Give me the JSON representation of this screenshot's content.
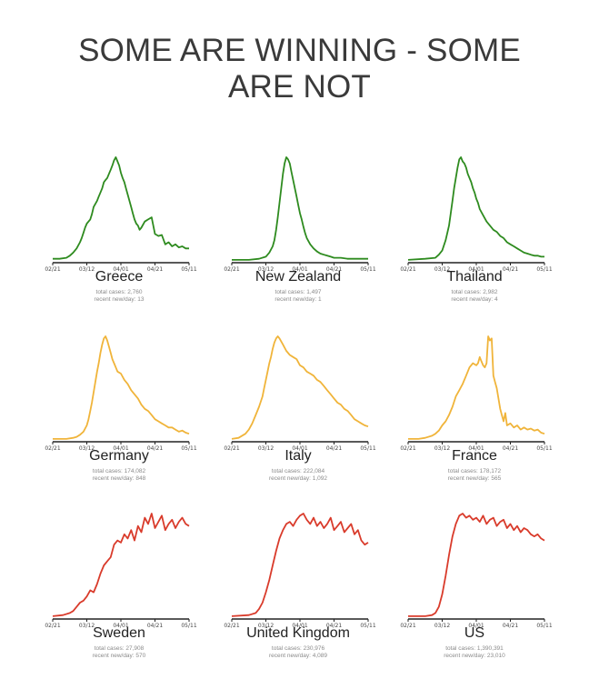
{
  "title": {
    "line1": "SOME ARE WINNING - SOME",
    "line2": "ARE NOT"
  },
  "colors": {
    "winning": "#2e8b1f",
    "mid": "#f0b43a",
    "losing": "#d93b2b",
    "axis": "#222222"
  },
  "chart_data": [
    {
      "type": "line",
      "title": "Greece",
      "total_cases": "total cases: 2,760",
      "recent": "recent new/day: 13",
      "color": "#2e8b1f",
      "x_ticks": [
        "02/21",
        "03/12",
        "04/01",
        "04/21",
        "05/11"
      ],
      "x": [
        0,
        4,
        8,
        10,
        12,
        14,
        16,
        17,
        18,
        19,
        20,
        21,
        22,
        23,
        24,
        25,
        26,
        27,
        28,
        29,
        30,
        31,
        32,
        33,
        34,
        35,
        36,
        37,
        38,
        39,
        40,
        41,
        42,
        43,
        44,
        45,
        46,
        47,
        48,
        49,
        50,
        51,
        52,
        54,
        56,
        58,
        60,
        62,
        64,
        66,
        68,
        70,
        72,
        74,
        76,
        78,
        80
      ],
      "y": [
        0.02,
        0.02,
        0.03,
        0.05,
        0.08,
        0.12,
        0.18,
        0.22,
        0.27,
        0.32,
        0.36,
        0.38,
        0.4,
        0.45,
        0.52,
        0.55,
        0.58,
        0.62,
        0.66,
        0.7,
        0.76,
        0.78,
        0.8,
        0.84,
        0.88,
        0.92,
        0.97,
        1.0,
        0.96,
        0.92,
        0.85,
        0.8,
        0.76,
        0.7,
        0.64,
        0.58,
        0.52,
        0.46,
        0.4,
        0.36,
        0.34,
        0.3,
        0.32,
        0.38,
        0.4,
        0.42,
        0.26,
        0.24,
        0.25,
        0.16,
        0.18,
        0.14,
        0.16,
        0.13,
        0.14,
        0.12,
        0.12
      ]
    },
    {
      "type": "line",
      "title": "New Zealand",
      "total_cases": "total cases: 1,497",
      "recent": "recent new/day: 1",
      "color": "#2e8b1f",
      "x_ticks": [
        "02/21",
        "03/12",
        "04/01",
        "04/21",
        "05/11"
      ],
      "x": [
        0,
        10,
        16,
        20,
        22,
        24,
        25,
        26,
        27,
        28,
        29,
        30,
        31,
        32,
        33,
        34,
        35,
        36,
        37,
        38,
        39,
        40,
        41,
        42,
        43,
        44,
        46,
        48,
        50,
        52,
        54,
        56,
        58,
        60,
        64,
        68,
        72,
        76,
        80
      ],
      "y": [
        0.01,
        0.01,
        0.02,
        0.04,
        0.08,
        0.14,
        0.2,
        0.3,
        0.42,
        0.56,
        0.7,
        0.84,
        0.94,
        1.0,
        0.98,
        0.94,
        0.86,
        0.78,
        0.7,
        0.62,
        0.54,
        0.46,
        0.4,
        0.33,
        0.27,
        0.22,
        0.16,
        0.12,
        0.09,
        0.07,
        0.06,
        0.05,
        0.04,
        0.03,
        0.03,
        0.02,
        0.02,
        0.02,
        0.02
      ]
    },
    {
      "type": "line",
      "title": "Thailand",
      "total_cases": "total cases: 2,982",
      "recent": "recent new/day: 4",
      "color": "#2e8b1f",
      "x_ticks": [
        "02/21",
        "03/12",
        "04/01",
        "04/21",
        "05/11"
      ],
      "x": [
        0,
        10,
        16,
        18,
        20,
        22,
        24,
        25,
        26,
        27,
        28,
        29,
        30,
        31,
        32,
        33,
        34,
        35,
        36,
        37,
        38,
        39,
        40,
        41,
        42,
        44,
        46,
        48,
        50,
        52,
        54,
        56,
        58,
        60,
        62,
        64,
        66,
        68,
        70,
        72,
        74,
        76,
        78,
        80
      ],
      "y": [
        0.01,
        0.02,
        0.03,
        0.06,
        0.1,
        0.2,
        0.34,
        0.46,
        0.58,
        0.7,
        0.8,
        0.9,
        0.98,
        1.0,
        0.96,
        0.94,
        0.9,
        0.84,
        0.8,
        0.76,
        0.7,
        0.66,
        0.6,
        0.56,
        0.5,
        0.44,
        0.38,
        0.34,
        0.3,
        0.28,
        0.24,
        0.22,
        0.18,
        0.16,
        0.14,
        0.12,
        0.1,
        0.08,
        0.07,
        0.06,
        0.05,
        0.05,
        0.04,
        0.04
      ]
    },
    {
      "type": "line",
      "title": "Germany",
      "total_cases": "total cases: 174,082",
      "recent": "recent new/day: 848",
      "color": "#f0b43a",
      "x_ticks": [
        "02/21",
        "03/12",
        "04/01",
        "04/21",
        "05/11"
      ],
      "x": [
        0,
        8,
        12,
        14,
        16,
        18,
        20,
        21,
        22,
        23,
        24,
        25,
        26,
        27,
        28,
        29,
        30,
        31,
        32,
        33,
        34,
        35,
        36,
        37,
        38,
        40,
        42,
        44,
        46,
        48,
        50,
        52,
        54,
        56,
        58,
        60,
        62,
        64,
        66,
        68,
        70,
        72,
        74,
        76,
        78,
        80
      ],
      "y": [
        0.01,
        0.01,
        0.02,
        0.03,
        0.05,
        0.08,
        0.14,
        0.2,
        0.28,
        0.36,
        0.46,
        0.56,
        0.66,
        0.74,
        0.84,
        0.92,
        0.98,
        1.0,
        0.96,
        0.9,
        0.84,
        0.78,
        0.74,
        0.7,
        0.66,
        0.64,
        0.58,
        0.54,
        0.48,
        0.44,
        0.4,
        0.34,
        0.3,
        0.28,
        0.24,
        0.2,
        0.18,
        0.16,
        0.14,
        0.12,
        0.12,
        0.1,
        0.08,
        0.09,
        0.07,
        0.06
      ]
    },
    {
      "type": "line",
      "title": "Italy",
      "total_cases": "total cases: 222,084",
      "recent": "recent new/day: 1,092",
      "color": "#f0b43a",
      "x_ticks": [
        "02/21",
        "03/12",
        "04/01",
        "04/21",
        "05/11"
      ],
      "x": [
        0,
        4,
        8,
        10,
        12,
        14,
        16,
        18,
        19,
        20,
        21,
        22,
        23,
        24,
        25,
        26,
        27,
        28,
        30,
        32,
        34,
        36,
        38,
        40,
        42,
        44,
        46,
        48,
        50,
        52,
        54,
        56,
        58,
        60,
        62,
        64,
        66,
        68,
        70,
        72,
        74,
        76,
        78,
        80
      ],
      "y": [
        0.01,
        0.02,
        0.06,
        0.1,
        0.16,
        0.24,
        0.32,
        0.42,
        0.5,
        0.58,
        0.66,
        0.74,
        0.8,
        0.88,
        0.94,
        0.98,
        1.0,
        0.98,
        0.92,
        0.86,
        0.82,
        0.8,
        0.78,
        0.72,
        0.7,
        0.66,
        0.64,
        0.62,
        0.58,
        0.56,
        0.52,
        0.48,
        0.44,
        0.4,
        0.36,
        0.34,
        0.3,
        0.28,
        0.24,
        0.2,
        0.18,
        0.16,
        0.14,
        0.13
      ]
    },
    {
      "type": "line",
      "title": "France",
      "total_cases": "total cases: 178,172",
      "recent": "recent new/day: 565",
      "color": "#f0b43a",
      "x_ticks": [
        "02/21",
        "03/12",
        "04/01",
        "04/21",
        "05/11"
      ],
      "x": [
        0,
        6,
        10,
        14,
        16,
        18,
        20,
        22,
        24,
        26,
        28,
        30,
        32,
        34,
        36,
        38,
        40,
        41,
        42,
        43,
        44,
        45,
        46,
        47,
        48,
        49,
        50,
        51,
        52,
        53,
        54,
        55,
        56,
        57,
        58,
        60,
        62,
        64,
        66,
        68,
        70,
        72,
        74,
        76,
        78,
        80
      ],
      "y": [
        0.01,
        0.01,
        0.02,
        0.04,
        0.06,
        0.09,
        0.14,
        0.18,
        0.24,
        0.32,
        0.42,
        0.48,
        0.54,
        0.62,
        0.7,
        0.74,
        0.72,
        0.74,
        0.8,
        0.76,
        0.72,
        0.7,
        0.74,
        1.0,
        0.96,
        0.98,
        0.62,
        0.56,
        0.5,
        0.4,
        0.3,
        0.24,
        0.18,
        0.26,
        0.14,
        0.16,
        0.12,
        0.14,
        0.1,
        0.12,
        0.1,
        0.11,
        0.09,
        0.1,
        0.07,
        0.06
      ]
    },
    {
      "type": "line",
      "title": "Sweden",
      "total_cases": "total cases: 27,908",
      "recent": "recent new/day: 570",
      "color": "#d93b2b",
      "x_ticks": [
        "02/21",
        "03/12",
        "04/01",
        "04/21",
        "05/11"
      ],
      "x": [
        0,
        6,
        10,
        12,
        14,
        16,
        18,
        20,
        22,
        24,
        26,
        28,
        30,
        32,
        34,
        36,
        38,
        40,
        42,
        44,
        46,
        48,
        50,
        52,
        54,
        56,
        58,
        60,
        62,
        64,
        66,
        68,
        70,
        72,
        74,
        76,
        78,
        80
      ],
      "y": [
        0.01,
        0.02,
        0.04,
        0.06,
        0.1,
        0.14,
        0.16,
        0.2,
        0.26,
        0.24,
        0.32,
        0.42,
        0.5,
        0.54,
        0.58,
        0.7,
        0.74,
        0.72,
        0.8,
        0.76,
        0.84,
        0.74,
        0.88,
        0.82,
        0.96,
        0.9,
        1.0,
        0.86,
        0.92,
        0.98,
        0.84,
        0.9,
        0.94,
        0.86,
        0.92,
        0.96,
        0.9,
        0.88
      ]
    },
    {
      "type": "line",
      "title": "United Kingdom",
      "total_cases": "total cases: 230,976",
      "recent": "recent new/day: 4,089",
      "color": "#d93b2b",
      "x_ticks": [
        "02/21",
        "03/12",
        "04/01",
        "04/21",
        "05/11"
      ],
      "x": [
        0,
        10,
        14,
        16,
        18,
        20,
        22,
        24,
        26,
        28,
        30,
        32,
        34,
        36,
        38,
        40,
        42,
        44,
        46,
        48,
        50,
        52,
        54,
        56,
        58,
        60,
        62,
        64,
        66,
        68,
        70,
        72,
        74,
        76,
        78,
        80
      ],
      "y": [
        0.01,
        0.02,
        0.04,
        0.08,
        0.14,
        0.24,
        0.36,
        0.5,
        0.64,
        0.76,
        0.84,
        0.9,
        0.92,
        0.88,
        0.94,
        0.98,
        1.0,
        0.94,
        0.9,
        0.96,
        0.88,
        0.92,
        0.86,
        0.9,
        0.96,
        0.84,
        0.88,
        0.92,
        0.82,
        0.86,
        0.9,
        0.8,
        0.84,
        0.74,
        0.7,
        0.72
      ]
    },
    {
      "type": "line",
      "title": "US",
      "total_cases": "total cases: 1,390,391",
      "recent": "recent new/day: 23,010",
      "color": "#d93b2b",
      "x_ticks": [
        "02/21",
        "03/12",
        "04/01",
        "04/21",
        "05/11"
      ],
      "x": [
        0,
        10,
        14,
        16,
        18,
        20,
        22,
        24,
        26,
        28,
        30,
        32,
        34,
        36,
        38,
        40,
        42,
        44,
        46,
        48,
        50,
        52,
        54,
        56,
        58,
        60,
        62,
        64,
        66,
        68,
        70,
        72,
        74,
        76,
        78,
        80
      ],
      "y": [
        0.01,
        0.01,
        0.02,
        0.04,
        0.1,
        0.22,
        0.4,
        0.6,
        0.78,
        0.9,
        0.98,
        1.0,
        0.96,
        0.98,
        0.94,
        0.96,
        0.92,
        0.98,
        0.9,
        0.94,
        0.96,
        0.88,
        0.92,
        0.94,
        0.86,
        0.9,
        0.84,
        0.88,
        0.82,
        0.86,
        0.84,
        0.8,
        0.78,
        0.8,
        0.76,
        0.74
      ]
    }
  ]
}
